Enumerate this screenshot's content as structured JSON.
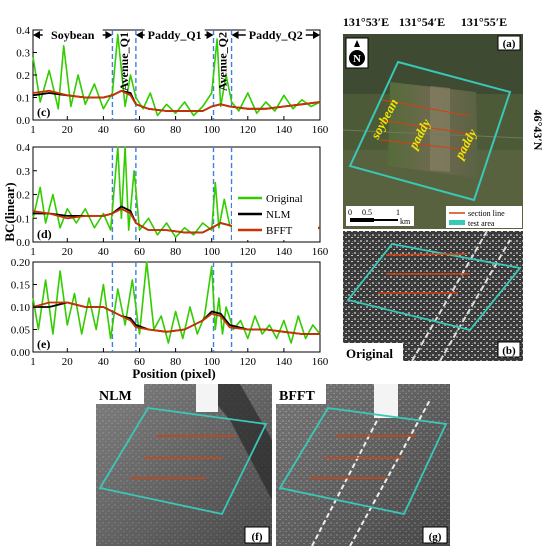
{
  "chart_data": [
    {
      "type": "line",
      "panel_label": "(c)",
      "xlim": [
        1,
        160
      ],
      "ylim": [
        0,
        0.4
      ],
      "x_ticks": [
        "1",
        "20",
        "40",
        "60",
        "80",
        "100",
        "120",
        "140",
        "160"
      ],
      "y_ticks": [
        "0.0",
        "0.1",
        "0.2",
        "0.3",
        "0.4"
      ],
      "region_labels": [
        "Soybean",
        "Avenue_Q1",
        "Paddy_Q1",
        "Avenue_Q2",
        "Paddy_Q2"
      ],
      "boundaries": [
        45,
        58,
        101,
        111
      ],
      "series": [
        {
          "name": "Original",
          "color": "#33cc00",
          "x": [
            1,
            5,
            10,
            15,
            18,
            22,
            26,
            30,
            35,
            40,
            45,
            48,
            52,
            55,
            58,
            62,
            66,
            70,
            75,
            80,
            85,
            90,
            95,
            100,
            103,
            105,
            108,
            111,
            115,
            120,
            125,
            130,
            135,
            140,
            145,
            150,
            155,
            160
          ],
          "y": [
            0.28,
            0.08,
            0.22,
            0.05,
            0.33,
            0.06,
            0.2,
            0.07,
            0.16,
            0.05,
            0.12,
            0.38,
            0.06,
            0.2,
            0.1,
            0.05,
            0.12,
            0.02,
            0.07,
            0.03,
            0.08,
            0.02,
            0.06,
            0.12,
            0.36,
            0.06,
            0.2,
            0.08,
            0.04,
            0.12,
            0.03,
            0.08,
            0.04,
            0.11,
            0.05,
            0.09,
            0.06,
            0.08
          ]
        },
        {
          "name": "NLM",
          "color": "#000000",
          "x": [
            1,
            10,
            20,
            30,
            40,
            45,
            50,
            55,
            58,
            65,
            75,
            85,
            95,
            100,
            105,
            110,
            120,
            130,
            140,
            150,
            160
          ],
          "y": [
            0.11,
            0.12,
            0.11,
            0.1,
            0.1,
            0.11,
            0.13,
            0.12,
            0.07,
            0.05,
            0.04,
            0.04,
            0.04,
            0.06,
            0.07,
            0.06,
            0.05,
            0.05,
            0.06,
            0.07,
            0.08
          ]
        },
        {
          "name": "BFFT",
          "color": "#cc3300",
          "x": [
            1,
            10,
            20,
            30,
            40,
            45,
            50,
            55,
            58,
            65,
            75,
            85,
            95,
            100,
            105,
            110,
            120,
            130,
            140,
            150,
            160
          ],
          "y": [
            0.12,
            0.13,
            0.11,
            0.1,
            0.1,
            0.11,
            0.13,
            0.11,
            0.07,
            0.05,
            0.04,
            0.04,
            0.04,
            0.06,
            0.07,
            0.06,
            0.05,
            0.05,
            0.06,
            0.07,
            0.08
          ]
        }
      ]
    },
    {
      "type": "line",
      "panel_label": "(d)",
      "xlim": [
        1,
        160
      ],
      "ylim": [
        0,
        0.4
      ],
      "x_ticks": [
        "1",
        "20",
        "40",
        "60",
        "80",
        "100",
        "120",
        "140",
        "160"
      ],
      "y_ticks": [
        "0.0",
        "0.1",
        "0.2",
        "0.3",
        "0.4"
      ],
      "ylabel": "BC(linear)",
      "boundaries": [
        45,
        58,
        101,
        111
      ],
      "series": [
        {
          "name": "Original",
          "color": "#33cc00",
          "x": [
            1,
            5,
            8,
            12,
            16,
            20,
            25,
            30,
            35,
            40,
            44,
            48,
            50,
            52,
            54,
            57,
            60,
            65,
            70,
            75,
            80,
            85,
            90,
            95,
            100,
            102,
            104,
            107,
            110,
            115,
            120,
            125,
            130,
            135,
            140,
            145,
            150,
            155,
            160
          ],
          "y": [
            0.1,
            0.23,
            0.08,
            0.2,
            0.06,
            0.14,
            0.08,
            0.14,
            0.06,
            0.12,
            0.05,
            0.4,
            0.1,
            0.4,
            0.05,
            0.3,
            0.05,
            0.1,
            0.03,
            0.08,
            0.02,
            0.06,
            0.03,
            0.08,
            0.05,
            0.25,
            0.06,
            0.18,
            0.07,
            0.04,
            0.08,
            0.03,
            0.07,
            0.03,
            0.08,
            0.05,
            0.07,
            0.05,
            0.06
          ]
        },
        {
          "name": "NLM",
          "color": "#000000",
          "x": [
            1,
            10,
            20,
            30,
            40,
            45,
            50,
            55,
            58,
            65,
            75,
            85,
            95,
            100,
            105,
            110,
            120,
            130,
            140,
            150,
            160
          ],
          "y": [
            0.12,
            0.12,
            0.11,
            0.11,
            0.11,
            0.12,
            0.15,
            0.13,
            0.08,
            0.05,
            0.05,
            0.04,
            0.04,
            0.06,
            0.08,
            0.07,
            0.05,
            0.05,
            0.05,
            0.06,
            0.06
          ]
        },
        {
          "name": "BFFT",
          "color": "#cc3300",
          "x": [
            1,
            10,
            20,
            30,
            40,
            45,
            50,
            55,
            58,
            65,
            75,
            85,
            95,
            100,
            105,
            110,
            120,
            130,
            140,
            150,
            160
          ],
          "y": [
            0.13,
            0.12,
            0.1,
            0.11,
            0.11,
            0.12,
            0.14,
            0.12,
            0.08,
            0.05,
            0.05,
            0.04,
            0.04,
            0.06,
            0.08,
            0.07,
            0.05,
            0.05,
            0.05,
            0.06,
            0.06
          ]
        }
      ]
    },
    {
      "type": "line",
      "panel_label": "(e)",
      "xlim": [
        1,
        160
      ],
      "ylim": [
        0,
        0.2
      ],
      "x_ticks": [
        "1",
        "20",
        "40",
        "60",
        "80",
        "100",
        "120",
        "140",
        "160"
      ],
      "y_ticks": [
        "0.00",
        "0.05",
        "0.10",
        "0.15",
        "0.20"
      ],
      "xlabel": "Position (pixel)",
      "boundaries": [
        45,
        58,
        101,
        111
      ],
      "series": [
        {
          "name": "Original",
          "color": "#33cc00",
          "x": [
            1,
            4,
            8,
            12,
            16,
            20,
            24,
            28,
            32,
            36,
            40,
            44,
            48,
            52,
            56,
            60,
            64,
            68,
            72,
            76,
            80,
            84,
            88,
            92,
            96,
            100,
            102,
            104,
            106,
            108,
            112,
            116,
            120,
            124,
            128,
            132,
            136,
            140,
            144,
            148,
            152,
            156,
            160
          ],
          "y": [
            0.12,
            0.05,
            0.16,
            0.04,
            0.18,
            0.06,
            0.13,
            0.04,
            0.12,
            0.05,
            0.15,
            0.03,
            0.14,
            0.06,
            0.16,
            0.04,
            0.2,
            0.05,
            0.08,
            0.02,
            0.09,
            0.03,
            0.1,
            0.04,
            0.08,
            0.19,
            0.05,
            0.12,
            0.04,
            0.1,
            0.05,
            0.07,
            0.03,
            0.08,
            0.04,
            0.06,
            0.03,
            0.07,
            0.02,
            0.08,
            0.03,
            0.06,
            0.04
          ]
        },
        {
          "name": "NLM",
          "color": "#000000",
          "x": [
            1,
            10,
            20,
            30,
            40,
            45,
            50,
            55,
            58,
            65,
            75,
            85,
            95,
            100,
            105,
            110,
            120,
            130,
            140,
            150,
            160
          ],
          "y": [
            0.1,
            0.1,
            0.11,
            0.1,
            0.1,
            0.09,
            0.08,
            0.075,
            0.06,
            0.05,
            0.045,
            0.05,
            0.07,
            0.09,
            0.085,
            0.06,
            0.05,
            0.05,
            0.045,
            0.04,
            0.04
          ]
        },
        {
          "name": "BFFT",
          "color": "#cc3300",
          "x": [
            1,
            10,
            20,
            30,
            40,
            45,
            50,
            55,
            58,
            65,
            75,
            85,
            95,
            100,
            105,
            110,
            120,
            130,
            140,
            150,
            160
          ],
          "y": [
            0.1,
            0.11,
            0.11,
            0.1,
            0.1,
            0.09,
            0.08,
            0.07,
            0.055,
            0.05,
            0.045,
            0.05,
            0.07,
            0.085,
            0.08,
            0.055,
            0.05,
            0.05,
            0.045,
            0.04,
            0.04
          ]
        }
      ]
    }
  ],
  "legend": [
    "Original",
    "NLM",
    "BFFT"
  ],
  "panels": {
    "a": {
      "label": "(a)",
      "lon_ticks": [
        "131°53′E",
        "131°54′E",
        "131°55′E"
      ],
      "lat_label": "46°43′N",
      "field_labels": [
        "soybean",
        "paddy",
        "paddy"
      ],
      "north": "N",
      "scale_ticks": [
        "0",
        "0.5",
        "1"
      ],
      "scale_unit": "km",
      "legend_items": [
        "section line",
        "test area"
      ]
    },
    "b": {
      "label": "(b)",
      "caption": "Original"
    },
    "f": {
      "label": "(f)",
      "caption": "NLM"
    },
    "g": {
      "label": "(g)",
      "caption": "BFFT"
    }
  },
  "colors": {
    "original": "#33cc00",
    "nlm": "#000000",
    "bfft": "#cc3300",
    "boundary": "#3f7fe0",
    "test_area": "#39c8b8",
    "section": "#d44010"
  }
}
